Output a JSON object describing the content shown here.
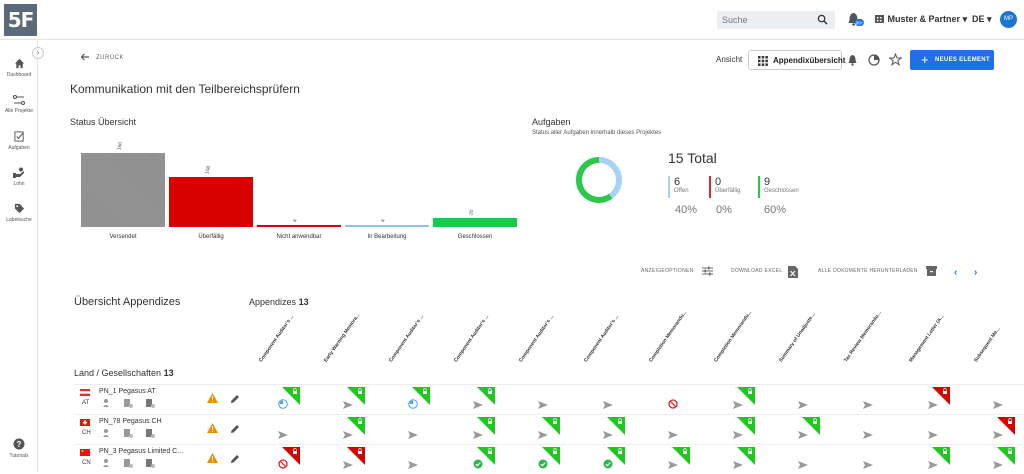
{
  "app": {
    "logo": "5F"
  },
  "topbar": {
    "search_placeholder": "Suche",
    "org_name": "Muster & Partner",
    "language": "DE",
    "avatar_initials": "MP",
    "notification_badge": "99+"
  },
  "sidebar": {
    "items": [
      {
        "label": "Dashboard",
        "icon": "home-icon"
      },
      {
        "label": "Alle Projekte",
        "icon": "projects-icon"
      },
      {
        "label": "Aufgaben",
        "icon": "tasks-icon"
      },
      {
        "label": "Lohn",
        "icon": "payroll-icon"
      },
      {
        "label": "Labelsuche",
        "icon": "label-icon"
      },
      {
        "label": "Tutorials",
        "icon": "help-icon"
      }
    ]
  },
  "header": {
    "back_label": "ZURÜCK",
    "view_label": "Ansicht",
    "view_button": "Appendixübersicht",
    "new_button": "NEUES ELEMENT",
    "page_title": "Kommunikation mit den Teilbereichsprüfern"
  },
  "status": {
    "title": "Status Übersicht",
    "chart_data": {
      "type": "bar",
      "categories": [
        "Versendet",
        "Überfällig",
        "Nicht anwendbar",
        "In Bearbeitung",
        "Geschlossen"
      ],
      "values": [
        160,
        108,
        4,
        4,
        20
      ],
      "ylim": [
        0,
        160
      ]
    },
    "colors": [
      "#8a8a8a",
      "#d90000",
      "#d90000",
      "#8cc4ee",
      "#1ec84a"
    ]
  },
  "tasks": {
    "title": "Aufgaben",
    "subtitle": "Status aller Aufgaben innerhalb dieses Projektes",
    "total": "15 Total",
    "stats": [
      {
        "count": "6",
        "label": "Offen",
        "pct": "40%",
        "color": "#a7d3f2"
      },
      {
        "count": "0",
        "label": "Überfällig",
        "pct": "0%",
        "color": "#d92c2c"
      },
      {
        "count": "9",
        "label": "Geschlossen",
        "pct": "60%",
        "color": "#2cc84a"
      }
    ],
    "chart_data": {
      "type": "pie",
      "categories": [
        "Offen",
        "Überfällig",
        "Geschlossen"
      ],
      "values": [
        6,
        0,
        9
      ]
    }
  },
  "toolbar": {
    "display_options": "ANZEIGEOPTIONEN",
    "download_excel": "DOWNLOAD EXCEL",
    "download_all": "ALLE DOKUMENTE HERUNTERLADEN"
  },
  "appendix": {
    "overview_title": "Übersicht Appendizes",
    "appendizes_label": "Appendizes",
    "appendizes_count": "13",
    "land_label": "Land / Gesellschaften",
    "land_count": "13",
    "columns": [
      "Component Auditor's ...",
      "Early Warning Memora...",
      "Component Auditor's ...",
      "Component Auditor's ...",
      "Component Auditor's ...",
      "Component Auditor's ...",
      "Completion Memorandu...",
      "Completion Memorandu...",
      "Summary of Unadjuste...",
      "Tax Review Memorandu...",
      "Management Letter (A...",
      "Subsequent Me..."
    ],
    "rows": [
      {
        "name": "PN_1 Pegasus AT",
        "cc": "AT",
        "cells": [
          "clock-green",
          "send-green",
          "clock-green",
          "send-green",
          "send-gray",
          "send-gray",
          "block-gray",
          "send-green",
          "send-gray",
          "send-gray",
          "send-red",
          "send-gray"
        ]
      },
      {
        "name": "PN_78 Pegasus CH",
        "cc": "CH",
        "cells": [
          "send-gray",
          "send-green",
          "send-gray",
          "send-green",
          "send-green",
          "send-green",
          "send-gray",
          "send-green",
          "send-green",
          "send-gray",
          "send-gray",
          "send-red"
        ]
      },
      {
        "name": "PN_3 Pegasus Limited C...",
        "cc": "CN",
        "cells": [
          "block-red",
          "send-red",
          "send-gray",
          "check-green",
          "check-green",
          "check-green",
          "send-green",
          "send-green",
          "send-gray",
          "send-gray",
          "send-green",
          "send-green"
        ]
      }
    ]
  }
}
